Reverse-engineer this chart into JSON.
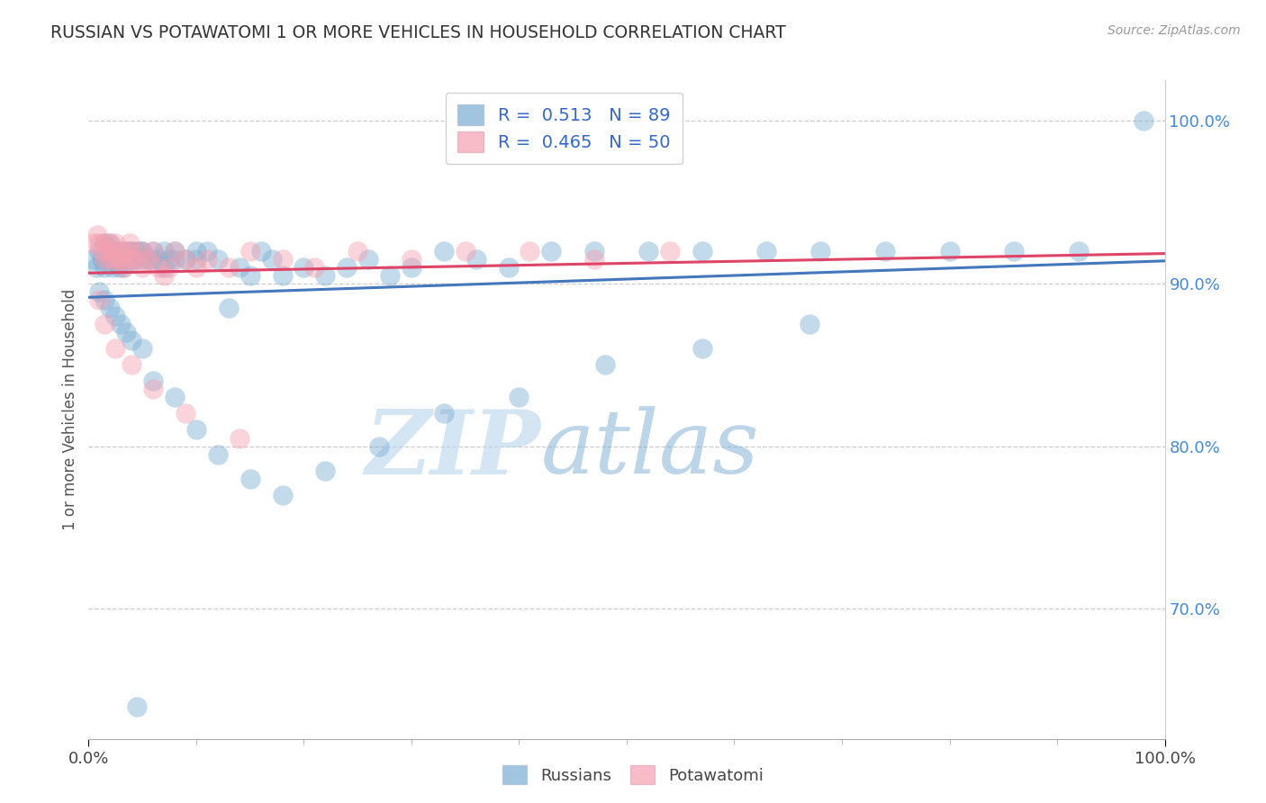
{
  "title": "RUSSIAN VS POTAWATOMI 1 OR MORE VEHICLES IN HOUSEHOLD CORRELATION CHART",
  "source_text": "Source: ZipAtlas.com",
  "ylabel": "1 or more Vehicles in Household",
  "xlim": [
    0.0,
    100.0
  ],
  "ylim": [
    62.0,
    102.5
  ],
  "yticks": [
    70.0,
    80.0,
    90.0,
    100.0
  ],
  "xticks": [
    0.0,
    100.0
  ],
  "xtick_labels": [
    "0.0%",
    "100.0%"
  ],
  "ytick_labels": [
    "70.0%",
    "80.0%",
    "90.0%",
    "100.0%"
  ],
  "russian_color": "#7aadd4",
  "potawatomi_color": "#f4a0b0",
  "russian_line_color": "#4477bb",
  "potawatomi_line_color": "#dd4466",
  "legend_text_color": "#3366cc",
  "ytick_color": "#4488dd",
  "R_russian": 0.513,
  "N_russian": 89,
  "R_potawatomi": 0.465,
  "N_potawatomi": 50,
  "watermark_ZIP": "ZIP",
  "watermark_atlas": "atlas",
  "background_color": "#ffffff",
  "grid_color": "#cccccc",
  "russian_x": [
    0.5,
    0.7,
    1.0,
    1.2,
    1.5,
    1.5,
    1.8,
    2.0,
    2.0,
    2.2,
    2.5,
    2.5,
    2.8,
    3.0,
    3.0,
    3.2,
    3.5,
    3.5,
    3.8,
    4.0,
    4.0,
    4.2,
    4.5,
    4.5,
    4.8,
    5.0,
    5.0,
    5.5,
    6.0,
    6.0,
    6.5,
    7.0,
    7.0,
    7.5,
    8.0,
    8.0,
    9.0,
    10.0,
    10.0,
    11.0,
    12.0,
    13.0,
    14.0,
    15.0,
    16.0,
    17.0,
    18.0,
    20.0,
    22.0,
    24.0,
    26.0,
    28.0,
    30.0,
    33.0,
    36.0,
    39.0,
    43.0,
    47.0,
    52.0,
    57.0,
    63.0,
    68.0,
    74.0,
    80.0,
    86.0,
    92.0,
    98.0,
    1.0,
    1.5,
    2.0,
    2.5,
    3.0,
    3.5,
    4.0,
    5.0,
    6.0,
    8.0,
    10.0,
    12.0,
    15.0,
    18.0,
    22.0,
    27.0,
    33.0,
    40.0,
    48.0,
    57.0,
    67.0,
    4.5
  ],
  "russian_y": [
    91.5,
    91.0,
    92.0,
    91.5,
    92.5,
    91.0,
    92.0,
    91.5,
    92.5,
    91.0,
    92.0,
    91.5,
    91.0,
    92.0,
    91.5,
    91.0,
    92.0,
    91.5,
    92.0,
    91.5,
    92.0,
    91.5,
    92.0,
    91.5,
    92.0,
    91.5,
    92.0,
    91.5,
    92.0,
    91.5,
    91.5,
    91.0,
    92.0,
    91.5,
    92.0,
    91.5,
    91.5,
    92.0,
    91.5,
    92.0,
    91.5,
    88.5,
    91.0,
    90.5,
    92.0,
    91.5,
    90.5,
    91.0,
    90.5,
    91.0,
    91.5,
    90.5,
    91.0,
    92.0,
    91.5,
    91.0,
    92.0,
    92.0,
    92.0,
    92.0,
    92.0,
    92.0,
    92.0,
    92.0,
    92.0,
    92.0,
    100.0,
    89.5,
    89.0,
    88.5,
    88.0,
    87.5,
    87.0,
    86.5,
    86.0,
    84.0,
    83.0,
    81.0,
    79.5,
    78.0,
    77.0,
    78.5,
    80.0,
    82.0,
    83.0,
    85.0,
    86.0,
    87.5,
    64.0
  ],
  "potawatomi_x": [
    0.5,
    0.8,
    1.0,
    1.2,
    1.5,
    1.5,
    1.8,
    2.0,
    2.0,
    2.2,
    2.5,
    2.5,
    2.8,
    3.0,
    3.0,
    3.2,
    3.5,
    3.5,
    3.8,
    4.0,
    4.0,
    4.5,
    5.0,
    5.0,
    5.5,
    6.0,
    6.5,
    7.0,
    7.5,
    8.0,
    9.0,
    10.0,
    11.0,
    13.0,
    15.0,
    18.0,
    21.0,
    25.0,
    30.0,
    35.0,
    41.0,
    47.0,
    54.0,
    1.0,
    1.5,
    2.5,
    4.0,
    6.0,
    9.0,
    14.0
  ],
  "potawatomi_y": [
    92.5,
    93.0,
    92.5,
    92.0,
    92.5,
    91.5,
    92.0,
    92.5,
    91.5,
    92.0,
    91.5,
    92.5,
    91.5,
    92.0,
    91.5,
    91.0,
    91.5,
    92.0,
    92.5,
    91.5,
    92.0,
    91.5,
    92.0,
    91.0,
    91.5,
    92.0,
    91.0,
    90.5,
    91.0,
    92.0,
    91.5,
    91.0,
    91.5,
    91.0,
    92.0,
    91.5,
    91.0,
    92.0,
    91.5,
    92.0,
    92.0,
    91.5,
    92.0,
    89.0,
    87.5,
    86.0,
    85.0,
    83.5,
    82.0,
    80.5
  ]
}
